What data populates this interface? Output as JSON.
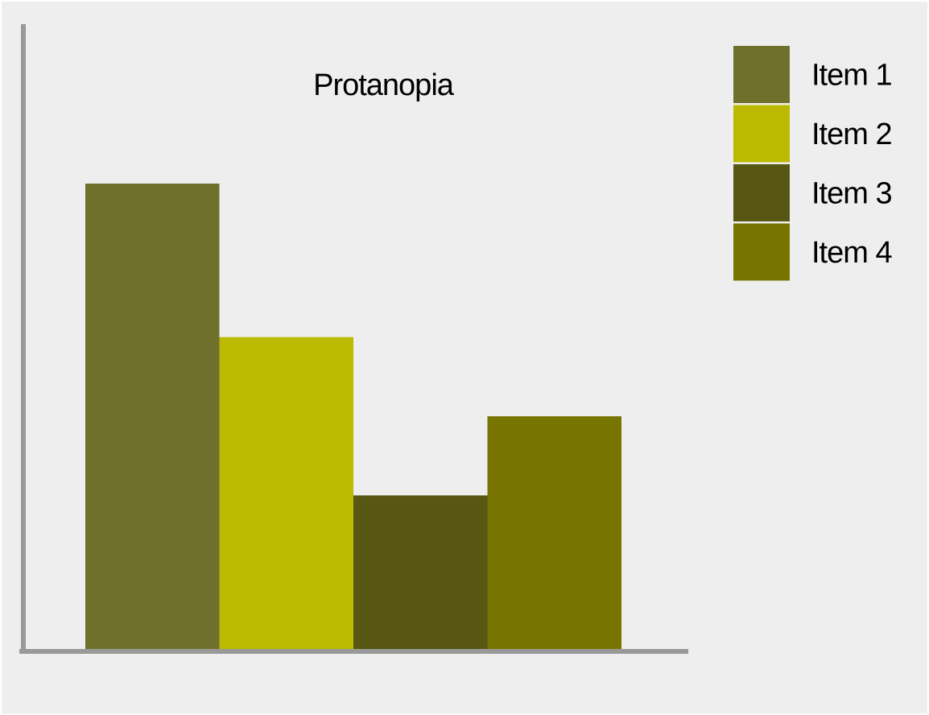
{
  "chart_data": {
    "type": "bar",
    "title": "Protanopia",
    "xlabel": "",
    "ylabel": "",
    "categories": [
      "Item 1",
      "Item 2",
      "Item 3",
      "Item 4"
    ],
    "values": [
      100,
      67,
      33,
      50
    ],
    "ylim": [
      0,
      100
    ],
    "colors": [
      "#6f702b",
      "#bbba00",
      "#575713",
      "#777500"
    ],
    "grid": false,
    "legend": "top-right"
  }
}
